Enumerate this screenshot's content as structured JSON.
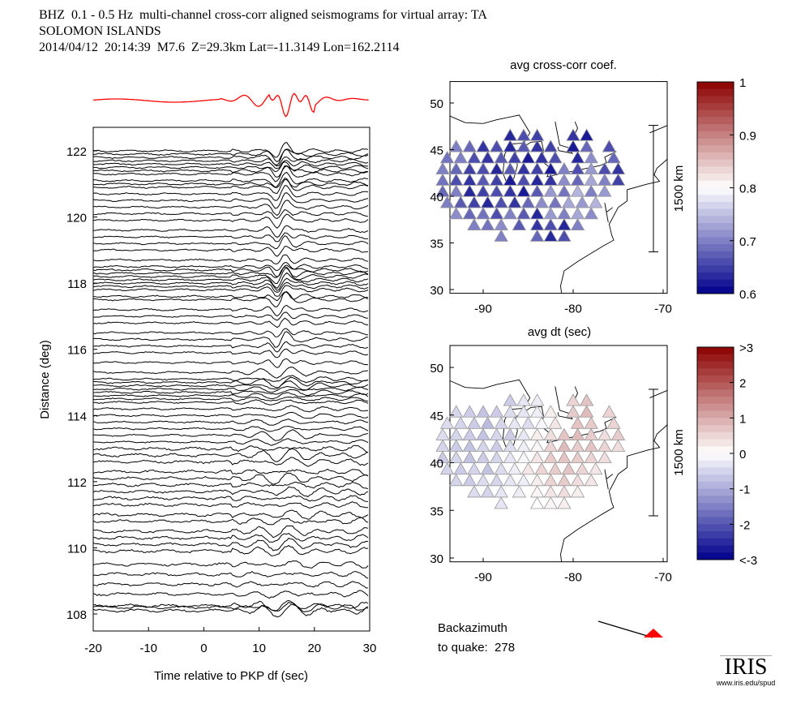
{
  "header": {
    "line1": "BHZ  0.1 - 0.5 Hz  multi-channel cross-corr aligned seismograms for virtual array: TA",
    "line2": "SOLOMON ISLANDS",
    "line3": "2014/04/12  20:14:39  M7.6  Z=29.3km Lat=-11.3149 Lon=162.2114"
  },
  "backazimuth": {
    "line1": "Backazimuth",
    "line2": "to quake:  278",
    "value": 278
  },
  "logo": {
    "text": "IRIS",
    "url": "www.iris.edu/spud"
  },
  "chart_data": [
    {
      "type": "line",
      "name": "seismograms",
      "xlabel": "Time relative to PKP df (sec)",
      "ylabel": "Distance (deg)",
      "xlim": [
        -20,
        30
      ],
      "ylim": [
        107.5,
        123.5
      ],
      "xticks": [
        -20,
        -10,
        0,
        10,
        20,
        30
      ],
      "yticks": [
        108,
        110,
        112,
        114,
        116,
        118,
        120,
        122
      ],
      "stack_color": "#ff0000",
      "distances": [
        108.1,
        108.2,
        108.25,
        108.6,
        108.9,
        109.2,
        109.5,
        109.9,
        110.1,
        110.3,
        110.5,
        110.8,
        111.0,
        111.3,
        111.5,
        111.7,
        111.9,
        112.1,
        112.3,
        112.6,
        112.8,
        113.0,
        113.2,
        113.4,
        113.6,
        113.8,
        114.0,
        114.2,
        114.4,
        114.5,
        114.6,
        114.7,
        114.8,
        114.9,
        115.0,
        115.1,
        115.3,
        115.6,
        115.9,
        116.1,
        116.3,
        116.5,
        116.8,
        117.0,
        117.2,
        117.5,
        117.6,
        117.8,
        117.9,
        118.0,
        118.1,
        118.2,
        118.3,
        118.4,
        118.5,
        118.7,
        119.0,
        119.2,
        119.4,
        119.6,
        119.9,
        120.1,
        120.3,
        120.5,
        120.7,
        120.9,
        121.0,
        121.1,
        121.3,
        121.4,
        121.5,
        121.6,
        121.7,
        121.8,
        121.9,
        122.0
      ]
    },
    {
      "type": "scatter",
      "name": "map-coef",
      "title": "avg cross-corr coef.",
      "xlim": [
        -93.7,
        -69.5
      ],
      "ylim": [
        29.6,
        52.3
      ],
      "xticks": [
        -90,
        -80,
        -70
      ],
      "yticks": [
        30,
        35,
        40,
        45,
        50
      ],
      "scale_label": "1500 km",
      "colorbar": {
        "min": 0.6,
        "max": 1,
        "ticks": [
          "1",
          "0.9",
          "0.8",
          "0.7",
          "0.6"
        ]
      }
    },
    {
      "type": "scatter",
      "name": "map-dt",
      "title": "avg dt (sec)",
      "xlim": [
        -93.7,
        -69.5
      ],
      "ylim": [
        29.6,
        52.3
      ],
      "xticks": [
        -90,
        -80,
        -70
      ],
      "yticks": [
        30,
        35,
        40,
        45,
        50
      ],
      "scale_label": "1500 km",
      "colorbar": {
        "min": -3,
        "max": 3,
        "ticks": [
          ">3",
          "2",
          "1",
          "0",
          "-1",
          "-2",
          "<-3"
        ]
      }
    }
  ],
  "stations": [
    {
      "lat": 46.5,
      "lons": [
        -87,
        -85.5,
        -84,
        -80,
        -78.5
      ],
      "coef": [
        0.63,
        0.66,
        0.65,
        0.64,
        0.62
      ],
      "dt": [
        -0.6,
        -0.3,
        -0.2,
        0.5,
        0.7
      ]
    },
    {
      "lat": 45.3,
      "lons": [
        -93,
        -91.5,
        -90,
        -88.5,
        -87,
        -85.5,
        -84,
        -82.5,
        -80,
        -78.5,
        -76
      ],
      "coef": [
        0.7,
        0.68,
        0.64,
        0.66,
        0.63,
        0.67,
        0.64,
        0.65,
        0.62,
        0.68,
        0.66
      ],
      "dt": [
        -0.5,
        -0.6,
        -0.7,
        -0.6,
        -0.4,
        -0.3,
        -0.2,
        0.2,
        0.6,
        0.8,
        0.5
      ]
    },
    {
      "lat": 44.1,
      "lons": [
        -94,
        -92.5,
        -91,
        -89.5,
        -88,
        -86.5,
        -85,
        -83.5,
        -82,
        -79.5,
        -78,
        -75.5
      ],
      "coef": [
        0.69,
        0.7,
        0.66,
        0.64,
        0.67,
        0.65,
        0.62,
        0.64,
        0.66,
        0.63,
        0.71,
        0.68
      ],
      "dt": [
        -0.4,
        -0.5,
        -0.6,
        -0.8,
        -0.5,
        -0.3,
        -0.4,
        -0.1,
        0.3,
        0.7,
        0.6,
        0.5
      ]
    },
    {
      "lat": 42.9,
      "lons": [
        -94.5,
        -93,
        -91.5,
        -90,
        -88.5,
        -87,
        -85.5,
        -84,
        -82.5,
        -81,
        -79.5,
        -78,
        -76.5,
        -75
      ],
      "coef": [
        0.7,
        0.68,
        0.65,
        0.66,
        0.63,
        0.67,
        0.64,
        0.65,
        0.62,
        0.7,
        0.66,
        0.72,
        0.66,
        0.64
      ],
      "dt": [
        -0.4,
        -0.5,
        -0.6,
        -0.7,
        -0.5,
        -0.6,
        -0.3,
        0.2,
        0.4,
        0.7,
        0.8,
        0.6,
        0.4,
        0.6
      ]
    },
    {
      "lat": 41.7,
      "lons": [
        -94.5,
        -93,
        -91.5,
        -90,
        -88.5,
        -87,
        -85.5,
        -84,
        -82.5,
        -81,
        -79.5,
        -78,
        -76.5,
        -75
      ],
      "coef": [
        0.69,
        0.66,
        0.64,
        0.67,
        0.65,
        0.62,
        0.66,
        0.63,
        0.64,
        0.71,
        0.68,
        0.73,
        0.7,
        0.65
      ],
      "dt": [
        -0.5,
        -0.6,
        -0.7,
        -0.5,
        -0.6,
        -0.4,
        -0.2,
        0.1,
        0.5,
        0.8,
        0.6,
        0.7,
        0.5,
        0.4
      ]
    },
    {
      "lat": 40.5,
      "lons": [
        -94.5,
        -93,
        -91.5,
        -90,
        -88.5,
        -87,
        -85.5,
        -84,
        -82.5,
        -81,
        -79.5,
        -78,
        -76.5
      ],
      "coef": [
        0.68,
        0.7,
        0.63,
        0.65,
        0.66,
        0.64,
        0.62,
        0.67,
        0.72,
        0.69,
        0.74,
        0.7,
        0.72
      ],
      "dt": [
        -0.6,
        -0.5,
        -0.7,
        -0.6,
        -0.5,
        -0.3,
        -0.1,
        0.3,
        0.6,
        0.7,
        0.6,
        0.5,
        0.4
      ]
    },
    {
      "lat": 39.3,
      "lons": [
        -94,
        -92.5,
        -91,
        -89.5,
        -88,
        -86.5,
        -85,
        -83.5,
        -82,
        -80.5,
        -79,
        -77.5
      ],
      "coef": [
        0.7,
        0.67,
        0.65,
        0.63,
        0.66,
        0.64,
        0.68,
        0.71,
        0.69,
        0.73,
        0.72,
        0.74
      ],
      "dt": [
        -0.5,
        -0.6,
        -0.5,
        -0.7,
        -0.4,
        -0.2,
        0.3,
        0.5,
        0.6,
        0.7,
        0.5,
        0.3
      ]
    },
    {
      "lat": 38.1,
      "lons": [
        -93,
        -91.5,
        -90,
        -88.5,
        -87,
        -85.5,
        -84,
        -82.5,
        -81,
        -79.5,
        -78
      ],
      "coef": [
        0.71,
        0.68,
        0.69,
        0.66,
        0.7,
        0.67,
        0.63,
        0.72,
        0.7,
        0.73,
        0.71
      ],
      "dt": [
        -0.5,
        -0.6,
        -0.4,
        -0.5,
        -0.3,
        -0.2,
        0.2,
        0.5,
        0.6,
        0.4,
        0.3
      ]
    },
    {
      "lat": 36.9,
      "lons": [
        -91,
        -89.5,
        -88,
        -86,
        -84,
        -82.5,
        -81,
        -79.5
      ],
      "coef": [
        0.7,
        0.69,
        0.71,
        0.67,
        0.64,
        0.66,
        0.63,
        0.7
      ],
      "dt": [
        -0.4,
        -0.5,
        -0.3,
        -0.2,
        0.1,
        0.3,
        0.4,
        0.2
      ]
    },
    {
      "lat": 35.7,
      "lons": [
        -88,
        -84,
        -82.5,
        -81
      ],
      "coef": [
        0.7,
        0.68,
        0.63,
        0.66
      ],
      "dt": [
        -0.3,
        0.0,
        0.1,
        0.2
      ]
    }
  ]
}
